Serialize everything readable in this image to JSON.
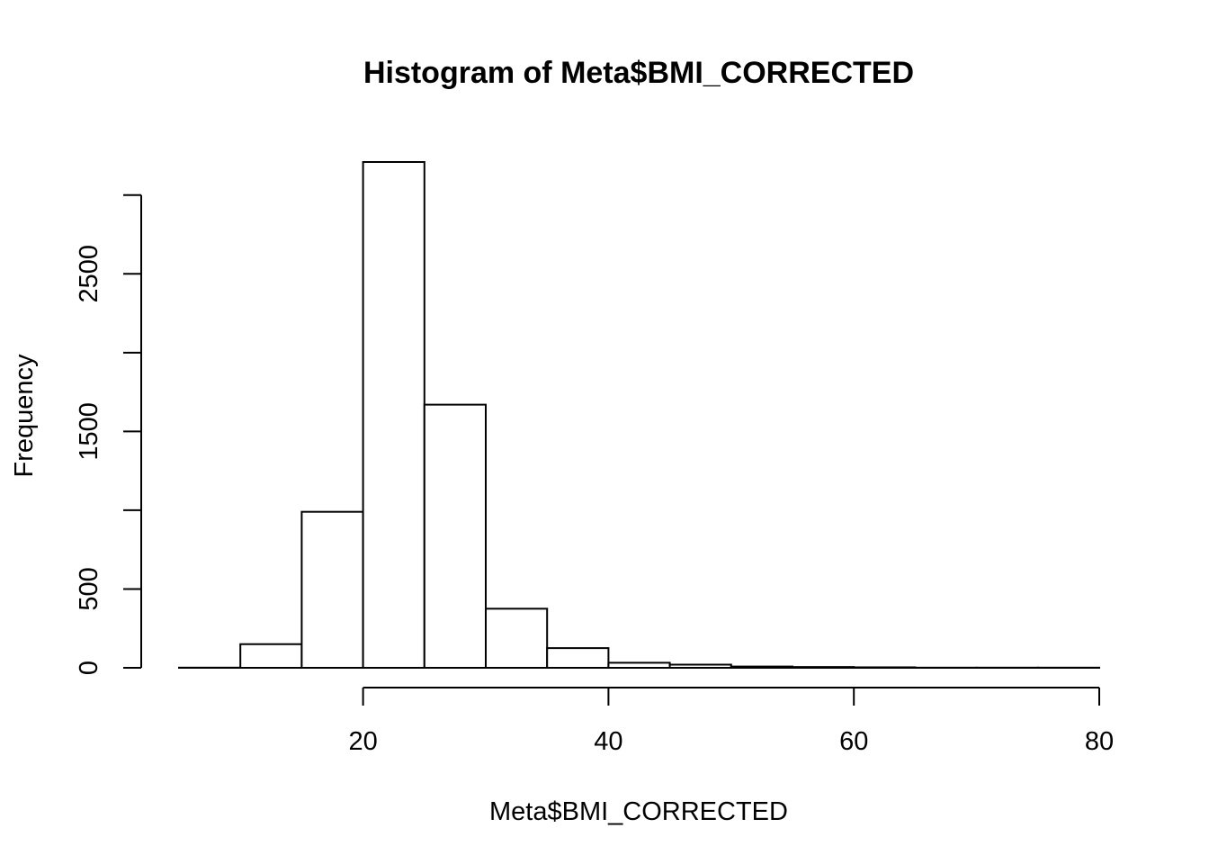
{
  "chart_data": {
    "type": "bar",
    "title": "Histogram of Meta$BMI_CORRECTED",
    "xlabel": "Meta$BMI_CORRECTED",
    "ylabel": "Frequency",
    "bin_edges": [
      5,
      10,
      15,
      20,
      25,
      30,
      35,
      40,
      45,
      50,
      55,
      60,
      65,
      70,
      75,
      80
    ],
    "values": [
      1,
      150,
      990,
      3210,
      1670,
      375,
      125,
      32,
      20,
      8,
      5,
      3,
      1,
      1,
      1
    ],
    "xlim": [
      5,
      80
    ],
    "ylim": [
      0,
      3210
    ],
    "x_ticks": [
      20,
      40,
      60,
      80
    ],
    "y_ticks": [
      0,
      500,
      1000,
      1500,
      2000,
      2500,
      3000
    ],
    "y_tick_labels": [
      "0",
      "500",
      "",
      "1500",
      "",
      "2500",
      ""
    ],
    "grid": false,
    "legend": "none"
  }
}
